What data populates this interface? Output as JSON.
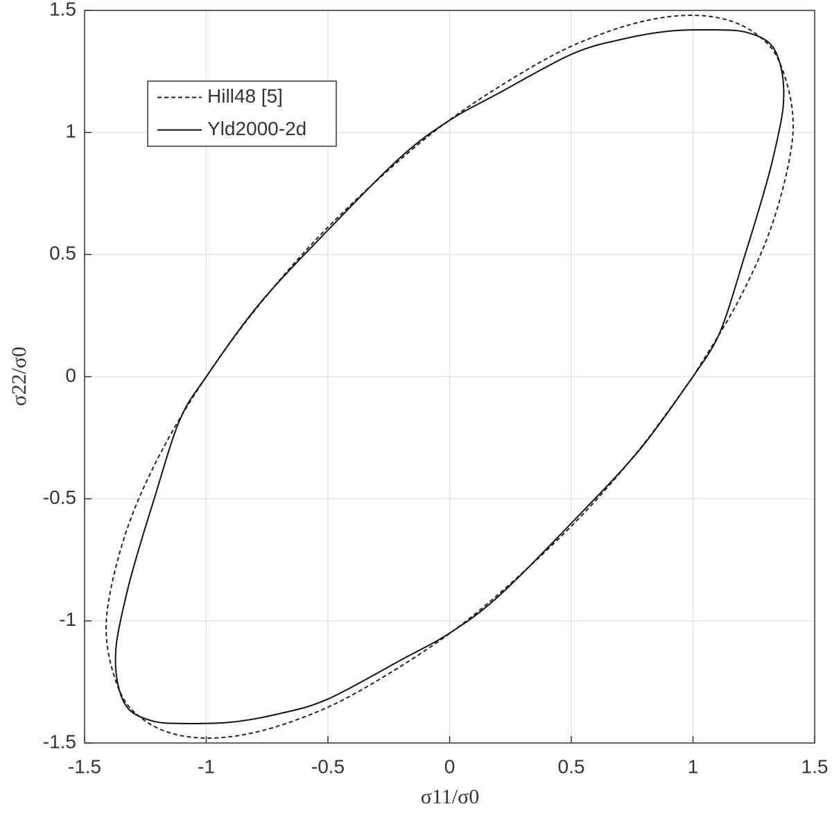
{
  "chart_data": {
    "type": "line",
    "xlabel": "σ11/σ0",
    "ylabel": "σ22/σ0",
    "xlim": [
      -1.5,
      1.5
    ],
    "ylim": [
      -1.5,
      1.5
    ],
    "xticks": [
      -1.5,
      -1,
      -0.5,
      0,
      0.5,
      1,
      1.5
    ],
    "yticks": [
      -1.5,
      -1,
      -0.5,
      0,
      0.5,
      1,
      1.5
    ],
    "grid": true,
    "legend": "upper left",
    "series": [
      {
        "name": "Hill48 [5]",
        "color": "#222222",
        "line_style": "dashed",
        "x": [
          1,
          1.181,
          1.317,
          1.398,
          1.407,
          1.35,
          1.264,
          1.144,
          0.993,
          0.816,
          0.615,
          0.394,
          0.069,
          -0.19,
          -0.512,
          -0.778,
          -1,
          -1.181,
          -1.317,
          -1.398,
          -1.407,
          -1.35,
          -1.264,
          -1.144,
          -0.993,
          -0.816,
          -0.615,
          -0.394,
          -0.069,
          0.19,
          0.512,
          0.778,
          1
        ],
        "values": [
          0,
          0.3,
          0.6,
          0.9,
          1.1,
          1.3,
          1.4,
          1.46,
          1.48,
          1.46,
          1.4,
          1.3,
          1.1,
          0.9,
          0.6,
          0.3,
          0,
          -0.3,
          -0.6,
          -0.9,
          -1.1,
          -1.3,
          -1.4,
          -1.46,
          -1.48,
          -1.46,
          -1.4,
          -1.3,
          -1.1,
          -0.9,
          -0.6,
          -0.3,
          0
        ]
      },
      {
        "name": "Yld2000-2d",
        "color": "#111111",
        "line_style": "solid",
        "x": [
          1,
          1.11,
          1.214,
          1.29,
          1.33,
          1.37,
          1.365,
          1.32,
          1.22,
          1.1,
          0.9,
          0.7,
          0.5,
          0.2,
          0,
          -0.2,
          -0.5,
          -0.78,
          -1,
          -1.11,
          -1.214,
          -1.29,
          -1.33,
          -1.37,
          -1.365,
          -1.32,
          -1.22,
          -1.1,
          -0.9,
          -0.7,
          -0.5,
          -0.2,
          0,
          0.2,
          0.5,
          0.78,
          1
        ],
        "values": [
          0,
          0.18,
          0.5,
          0.75,
          0.9,
          1.1,
          1.25,
          1.36,
          1.41,
          1.42,
          1.415,
          1.38,
          1.32,
          1.16,
          1.05,
          0.9,
          0.6,
          0.3,
          0,
          -0.18,
          -0.5,
          -0.75,
          -0.9,
          -1.1,
          -1.25,
          -1.36,
          -1.41,
          -1.42,
          -1.415,
          -1.38,
          -1.32,
          -1.16,
          -1.05,
          -0.9,
          -0.6,
          -0.3,
          0
        ]
      }
    ]
  }
}
